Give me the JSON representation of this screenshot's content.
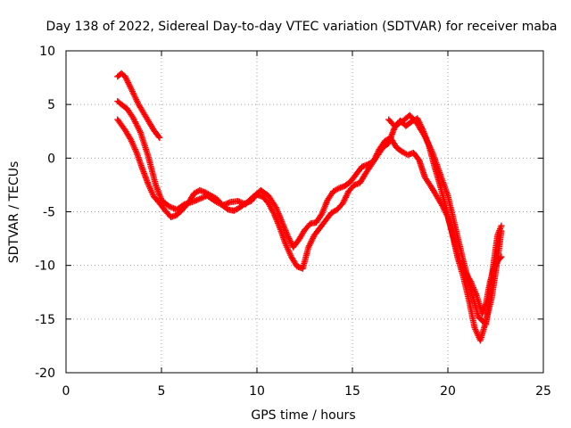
{
  "chart_data": {
    "type": "scatter",
    "title": "Day 138 of 2022, Sidereal Day-to-day VTEC variation (SDTVAR) for receiver maba",
    "xlabel": "GPS time / hours",
    "ylabel": "SDTVAR / TECUs",
    "xlim": [
      0,
      25
    ],
    "ylim": [
      -20,
      10
    ],
    "xticks": [
      0,
      5,
      10,
      15,
      20,
      25
    ],
    "yticks": [
      -20,
      -15,
      -10,
      -5,
      0,
      5,
      10
    ],
    "xtick_labels": [
      "0",
      "5",
      "10",
      "15",
      "20",
      "25"
    ],
    "ytick_labels": [
      "-20",
      "-15",
      "-10",
      "-5",
      "0",
      "5",
      "10"
    ],
    "grid": true,
    "marker": "plus",
    "color": "#ff0000",
    "series": [
      {
        "x": [
          2.7,
          2.9,
          3.1,
          3.4,
          3.8,
          4.2,
          4.6,
          4.9
        ],
        "y": [
          7.6,
          7.9,
          7.6,
          6.5,
          5.0,
          3.8,
          2.6,
          1.9
        ]
      },
      {
        "x": [
          2.7,
          2.9,
          3.2,
          3.5,
          3.9,
          4.3,
          4.7,
          5.0,
          5.4,
          5.8,
          6.2,
          6.6,
          7.0,
          7.4,
          7.8,
          8.2,
          8.6,
          9.0,
          9.4,
          9.8,
          10.2,
          10.6,
          11.0,
          11.3,
          11.6,
          11.9,
          12.2,
          12.5,
          12.8,
          13.1,
          13.4,
          13.7,
          14.0,
          14.3,
          14.6,
          14.9,
          15.2,
          15.5,
          15.8,
          16.1,
          16.4,
          16.7,
          17.0,
          17.3,
          17.6,
          17.9,
          18.2,
          18.5,
          18.8,
          19.1,
          19.4,
          19.7,
          20.0,
          20.3,
          20.6,
          20.9,
          21.2,
          21.5,
          21.8,
          22.0,
          22.2,
          22.4,
          22.6,
          22.8
        ],
        "y": [
          5.3,
          5.0,
          4.6,
          3.8,
          2.4,
          0.2,
          -2.5,
          -3.9,
          -4.5,
          -4.8,
          -4.3,
          -4.1,
          -3.8,
          -3.5,
          -4.0,
          -4.4,
          -4.1,
          -4.0,
          -4.3,
          -3.6,
          -3.0,
          -3.5,
          -4.6,
          -5.9,
          -7.2,
          -8.3,
          -7.6,
          -6.7,
          -6.1,
          -6.0,
          -5.2,
          -3.9,
          -3.1,
          -2.8,
          -2.6,
          -2.2,
          -1.5,
          -0.8,
          -0.6,
          -0.3,
          0.8,
          1.6,
          1.9,
          1.0,
          0.6,
          0.3,
          0.5,
          -0.2,
          -1.8,
          -2.6,
          -3.5,
          -4.4,
          -5.5,
          -7.5,
          -9.5,
          -10.6,
          -11.5,
          -12.8,
          -14.5,
          -13.5,
          -11.6,
          -10.3,
          -9.6,
          -9.2
        ]
      },
      {
        "x": [
          2.7,
          2.9,
          3.1,
          3.4,
          3.7,
          4.0,
          4.3,
          4.6,
          4.9,
          5.2,
          5.5,
          5.8,
          6.1,
          6.4,
          6.7,
          7.0,
          7.3,
          7.6,
          7.9,
          8.2,
          8.5,
          8.8,
          9.1,
          9.4,
          9.7,
          10.0,
          10.3,
          10.6,
          10.9,
          11.2,
          11.5,
          11.8,
          12.1,
          12.4,
          12.7,
          13.0,
          13.3,
          13.6,
          13.9,
          14.2,
          14.5,
          14.8,
          15.1,
          15.4,
          15.7,
          16.0,
          16.3,
          16.6,
          16.9,
          17.2,
          17.5,
          17.8,
          18.1,
          18.4,
          18.7,
          19.0,
          19.3,
          19.6,
          19.9,
          20.2,
          20.5,
          20.8,
          21.1,
          21.4,
          21.7,
          22.0,
          22.3,
          22.6,
          22.8
        ],
        "y": [
          3.6,
          3.1,
          2.6,
          1.7,
          0.5,
          -1.0,
          -2.4,
          -3.6,
          -4.2,
          -4.9,
          -5.5,
          -5.3,
          -4.8,
          -4.2,
          -3.3,
          -3.0,
          -3.2,
          -3.5,
          -3.8,
          -4.4,
          -4.8,
          -4.9,
          -4.6,
          -4.2,
          -4.0,
          -3.4,
          -3.6,
          -4.2,
          -5.2,
          -6.5,
          -8.0,
          -9.2,
          -10.1,
          -10.3,
          -8.3,
          -7.2,
          -6.5,
          -5.8,
          -5.1,
          -4.8,
          -4.2,
          -3.1,
          -2.5,
          -2.3,
          -1.4,
          -0.6,
          0.2,
          1.0,
          1.4,
          2.8,
          3.5,
          3.0,
          3.4,
          3.7,
          2.6,
          1.2,
          -0.8,
          -2.6,
          -4.6,
          -6.8,
          -9.2,
          -11.0,
          -13.2,
          -15.8,
          -17.0,
          -15.2,
          -13.0,
          -9.5,
          -6.8
        ]
      },
      {
        "x": [
          16.9,
          17.2,
          17.6,
          18.0,
          18.4,
          18.8,
          19.2,
          19.6,
          20.0,
          20.4,
          20.8,
          21.2,
          21.6,
          22.0,
          22.3,
          22.6,
          22.8
        ],
        "y": [
          3.6,
          3.0,
          3.4,
          4.0,
          3.2,
          2.0,
          0.5,
          -1.5,
          -3.5,
          -6.5,
          -9.5,
          -12.2,
          -14.8,
          -15.5,
          -11.0,
          -7.2,
          -6.3
        ]
      }
    ]
  }
}
